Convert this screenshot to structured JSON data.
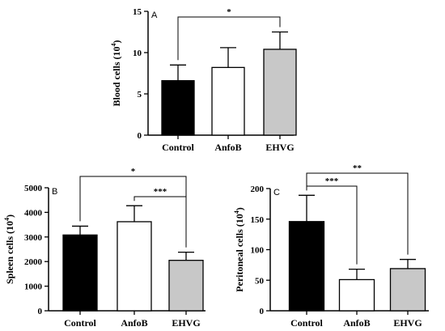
{
  "chart_data": [
    {
      "type": "bar",
      "panel": "A",
      "ylabel": "Blood cells (10",
      "ylabel_sup": "4",
      "ylabel_close": ")",
      "categories": [
        "Control",
        "AnfoB",
        "EHVG"
      ],
      "values": [
        6.6,
        8.2,
        10.4
      ],
      "errors": [
        1.9,
        2.4,
        2.1
      ],
      "ylim": [
        0,
        15
      ],
      "yticks": [
        "0",
        "5",
        "10",
        "15"
      ],
      "ytick_values": [
        0,
        5,
        10,
        15
      ],
      "colors": [
        "#000000",
        "#ffffff",
        "#c8c8c8"
      ],
      "significance": [
        {
          "from": 0,
          "to": 2,
          "label": "*"
        }
      ]
    },
    {
      "type": "bar",
      "panel": "B",
      "ylabel": "Spleen cells (10",
      "ylabel_sup": "4",
      "ylabel_close": ")",
      "categories": [
        "Control",
        "AnfoB",
        "EHVG"
      ],
      "values": [
        3080,
        3620,
        2050
      ],
      "errors": [
        360,
        650,
        330
      ],
      "ylim": [
        0,
        5000
      ],
      "yticks": [
        "0",
        "1000",
        "2000",
        "3000",
        "4000",
        "5000"
      ],
      "ytick_values": [
        0,
        1000,
        2000,
        3000,
        4000,
        5000
      ],
      "colors": [
        "#000000",
        "#ffffff",
        "#c8c8c8"
      ],
      "significance": [
        {
          "from": 0,
          "to": 2,
          "label": "*"
        },
        {
          "from": 1,
          "to": 2,
          "label": "***"
        }
      ]
    },
    {
      "type": "bar",
      "panel": "C",
      "ylabel": "Peritoneal cells (10",
      "ylabel_sup": "4",
      "ylabel_close": ")",
      "categories": [
        "Control",
        "AnfoB",
        "EHVG"
      ],
      "values": [
        146,
        51,
        69
      ],
      "errors": [
        43,
        17,
        15
      ],
      "ylim": [
        0,
        200
      ],
      "yticks": [
        "0",
        "50",
        "100",
        "150",
        "200"
      ],
      "ytick_values": [
        0,
        50,
        100,
        150,
        200
      ],
      "colors": [
        "#000000",
        "#ffffff",
        "#c8c8c8"
      ],
      "significance": [
        {
          "from": 0,
          "to": 1,
          "label": "***"
        },
        {
          "from": 0,
          "to": 2,
          "label": "**"
        }
      ]
    }
  ]
}
